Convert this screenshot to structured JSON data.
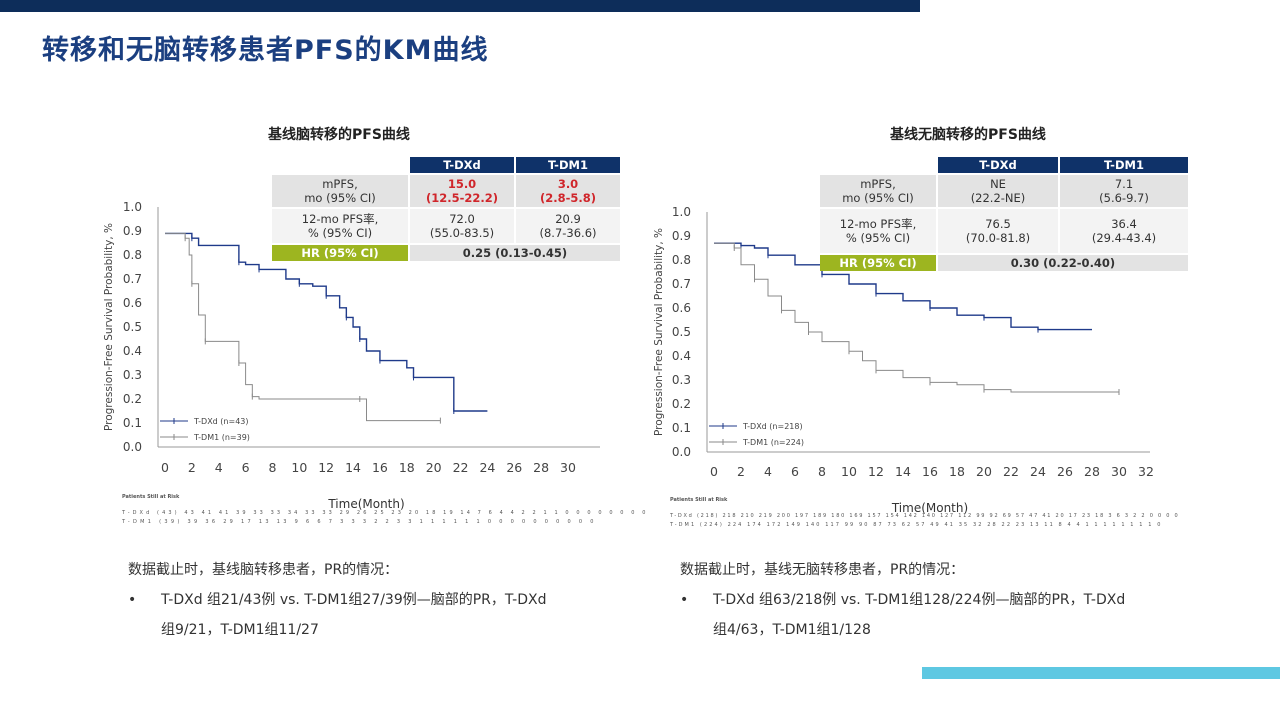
{
  "title": "转移和无脑转移患者PFS的KM曲线",
  "colors": {
    "topbar": "#0d2d5a",
    "accent": "#5ec8e2",
    "tdxd": "#1f3a8a",
    "tdm1": "#8a8a8a",
    "hr": "#9db520",
    "highlight": "#d0262b"
  },
  "left": {
    "title": "基线脑转移的PFS曲线",
    "table": {
      "headers": [
        "T-DXd",
        "T-DM1"
      ],
      "row1_label": [
        "mPFS,",
        "mo (95% CI)"
      ],
      "row1_tdxd": [
        "15.0",
        "(12.5-22.2)"
      ],
      "row1_tdm1": [
        "3.0",
        "(2.8-5.8)"
      ],
      "row2_label": [
        "12-mo PFS率,",
        "% (95% CI)"
      ],
      "row2_tdxd": [
        "72.0",
        "(55.0-83.5)"
      ],
      "row2_tdm1": [
        "20.9",
        "(8.7-36.6)"
      ],
      "hr_label": "HR (95% CI)",
      "hr_value": "0.25 (0.13-0.45)"
    },
    "risk": {
      "header": "Patients Still at Risk",
      "tdxd": "T-DXd (43)  43 41 41 39 33 33 34 33 33 29 26 25 23 20 18 19 14 7 6 4 4 2 2 1 1 0 0 0 0 0 0 0 0",
      "tdm1": "T-DM1 (39)  39 36 29 17 13 13 9 6 6 7 3 3 3 2 2 3 3 1 1 1 1 1 1 0 0 0 0 0 0 0 0 0 0"
    },
    "note": {
      "heading": "数据截止时，基线脑转移患者，PR的情况：",
      "bullet": "•",
      "line1": "T-DXd 组21/43例 vs. T-DM1组27/39例—脑部的PR，T-DXd",
      "line2": "组9/21，T-DM1组11/27"
    }
  },
  "right": {
    "title": "基线无脑转移的PFS曲线",
    "table": {
      "headers": [
        "T-DXd",
        "T-DM1"
      ],
      "row1_label": [
        "mPFS,",
        "mo (95% CI)"
      ],
      "row1_tdxd": [
        "NE",
        "(22.2-NE)"
      ],
      "row1_tdm1": [
        "7.1",
        "(5.6-9.7)"
      ],
      "row2_label": [
        "12-mo PFS率,",
        "% (95% CI)"
      ],
      "row2_tdxd": [
        "76.5",
        "(70.0-81.8)"
      ],
      "row2_tdm1": [
        "36.4",
        "(29.4-43.4)"
      ],
      "hr_label": "HR (95% CI)",
      "hr_value": "0.30 (0.22-0.40)"
    },
    "risk": {
      "header": "Patients Still at Risk",
      "tdxd": "T-DXd (218)  218 210 219 200 197 189 180 169 157 154 142 140 127 112 99 92 69 57 47 41 20 17 23 18 3 6 3 2 2 0 0 0 0",
      "tdm1": "T-DM1 (224)  224 174 172 149 140 117 99 90 87 73 62 57 49 41 35 32 28 22 23 13 11 8 4 4 1 1 1 1 1 1 1 1 0"
    },
    "note": {
      "heading": "数据截止时，基线无脑转移患者，PR的情况：",
      "bullet": "•",
      "line1": "T-DXd 组63/218例 vs. T-DM1组128/224例—脑部的PR，T-DXd",
      "line2": "组4/63，T-DM1组1/128"
    }
  },
  "chart_data": [
    {
      "type": "line",
      "subtitle": "基线脑转移的PFS曲线",
      "xlabel": "Time(Month)",
      "ylabel": "Progression-Free Survival Probability, %",
      "xlim": [
        0,
        30
      ],
      "ylim": [
        0,
        1.0
      ],
      "xticks": [
        0,
        2,
        4,
        6,
        8,
        10,
        12,
        14,
        16,
        18,
        20,
        22,
        24,
        26,
        28,
        30
      ],
      "yticks": [
        0.0,
        0.1,
        0.2,
        0.3,
        0.4,
        0.5,
        0.6,
        0.7,
        0.8,
        0.9,
        1.0
      ],
      "legend": "bottom-left",
      "grid": false,
      "series": [
        {
          "name": "T-DXd (n=43)",
          "color": "#1f3a8a",
          "x": [
            0,
            2,
            2.5,
            5.5,
            6,
            7,
            9,
            10,
            11,
            12,
            13,
            13.5,
            14,
            14.5,
            15,
            16,
            18,
            18.5,
            21,
            21.5,
            24
          ],
          "y": [
            0.89,
            0.87,
            0.84,
            0.77,
            0.76,
            0.74,
            0.7,
            0.68,
            0.67,
            0.63,
            0.58,
            0.54,
            0.5,
            0.45,
            0.4,
            0.36,
            0.33,
            0.29,
            0.29,
            0.15,
            0.15
          ]
        },
        {
          "name": "T-DM1 (n=39)",
          "color": "#8a8a8a",
          "x": [
            0,
            1.5,
            1.8,
            2,
            2.5,
            3,
            5,
            5.5,
            6,
            6.5,
            7,
            14.5,
            15,
            20.5
          ],
          "y": [
            0.89,
            0.87,
            0.8,
            0.68,
            0.55,
            0.44,
            0.44,
            0.35,
            0.26,
            0.21,
            0.2,
            0.2,
            0.11,
            0.11
          ]
        }
      ]
    },
    {
      "type": "line",
      "subtitle": "基线无脑转移的PFS曲线",
      "xlabel": "Time(Month)",
      "ylabel": "Progression-Free Survival Probability, %",
      "xlim": [
        0,
        32
      ],
      "ylim": [
        0,
        1.0
      ],
      "xticks": [
        0,
        2,
        4,
        6,
        8,
        10,
        12,
        14,
        16,
        18,
        20,
        22,
        24,
        26,
        28,
        30,
        32
      ],
      "yticks": [
        0.0,
        0.1,
        0.2,
        0.3,
        0.4,
        0.5,
        0.6,
        0.7,
        0.8,
        0.9,
        1.0
      ],
      "legend": "bottom-left",
      "grid": false,
      "series": [
        {
          "name": "T-DXd (n=218)",
          "color": "#1f3a8a",
          "x": [
            0,
            2,
            3,
            4,
            6,
            8,
            10,
            12,
            14,
            16,
            18,
            20,
            22,
            24,
            28
          ],
          "y": [
            0.87,
            0.86,
            0.85,
            0.82,
            0.78,
            0.74,
            0.7,
            0.66,
            0.63,
            0.6,
            0.57,
            0.56,
            0.52,
            0.51,
            0.51
          ]
        },
        {
          "name": "T-DM1 (n=224)",
          "color": "#8a8a8a",
          "x": [
            0,
            1.5,
            2,
            3,
            4,
            5,
            6,
            7,
            8,
            10,
            11,
            12,
            14,
            16,
            18,
            20,
            22,
            30
          ],
          "y": [
            0.87,
            0.85,
            0.78,
            0.72,
            0.65,
            0.59,
            0.54,
            0.5,
            0.46,
            0.42,
            0.38,
            0.34,
            0.31,
            0.29,
            0.28,
            0.26,
            0.25,
            0.25
          ]
        }
      ]
    }
  ]
}
